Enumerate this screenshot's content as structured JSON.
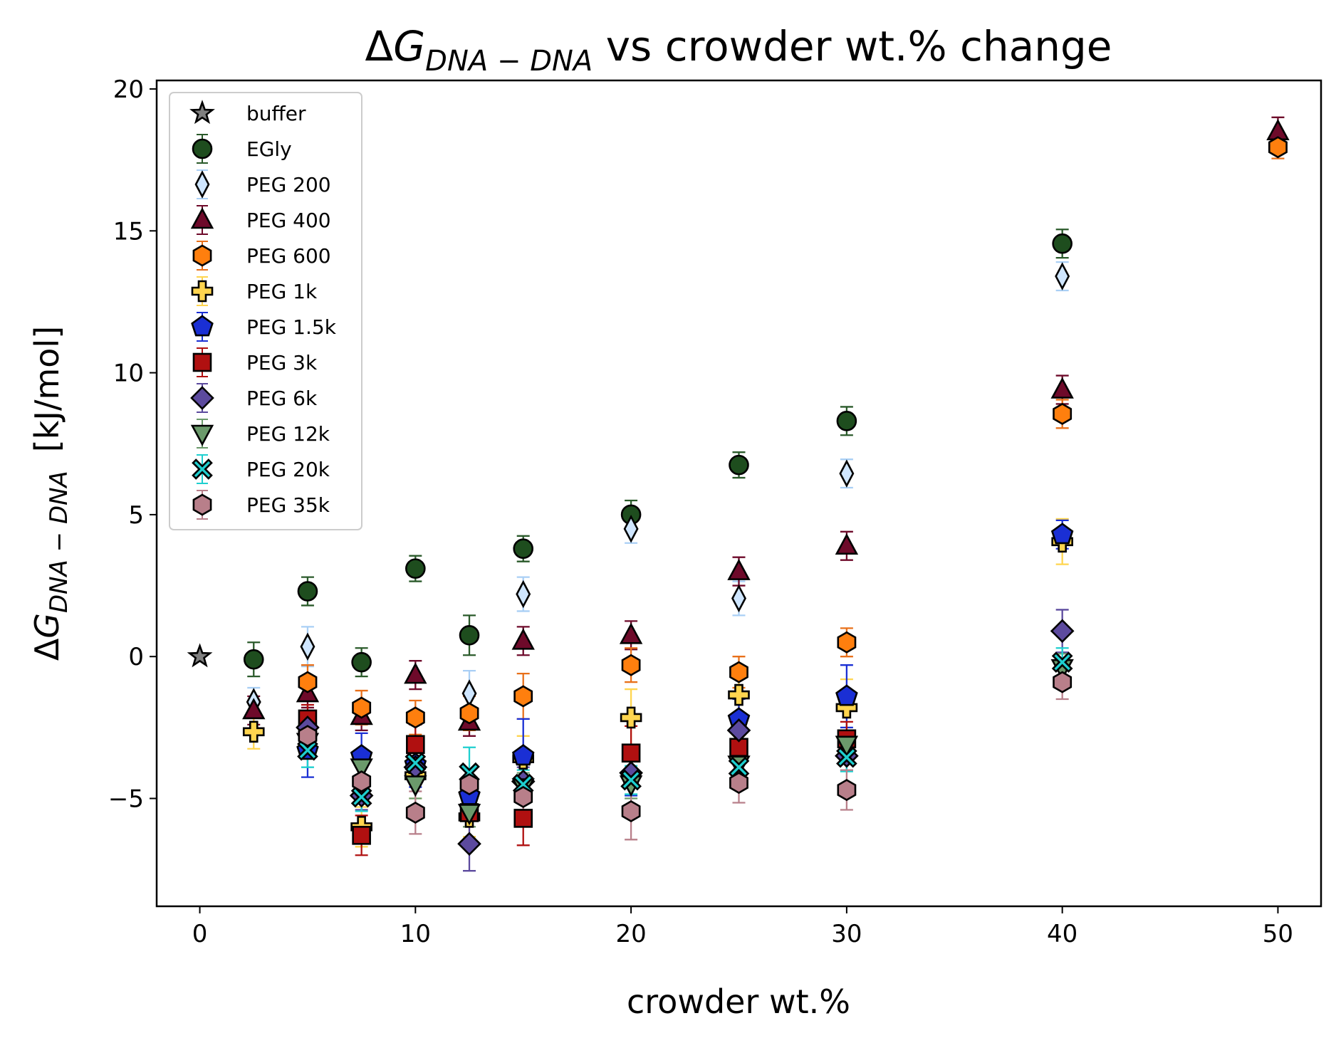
{
  "chart_data": {
    "type": "scatter",
    "title": "ΔG_{DNA-DNA} vs crowder wt.% change",
    "title_parts": {
      "delta": "Δ",
      "symbol": "G",
      "subscript": "DNA − DNA",
      "rest": " vs crowder wt.% change"
    },
    "xlabel": "crowder wt.%",
    "ylabel": "ΔG_{DNA-DNA}   [kJ/mol]",
    "ylabel_parts": {
      "delta": "Δ",
      "symbol": "G",
      "subscript": "DNA − DNA",
      "unit": "[kJ/mol]"
    },
    "xlim": [
      -2,
      52
    ],
    "ylim": [
      -8.8,
      20.3
    ],
    "xticks": [
      0,
      10,
      20,
      30,
      40,
      50
    ],
    "yticks": [
      -5,
      0,
      5,
      10,
      15,
      20
    ],
    "xtick_labels": [
      "0",
      "10",
      "20",
      "30",
      "40",
      "50"
    ],
    "ytick_labels": [
      "−5",
      "0",
      "5",
      "10",
      "15",
      "20"
    ],
    "grid": false,
    "legend_position": "upper-left",
    "series": [
      {
        "name": "buffer",
        "marker": "star",
        "color": "#808080",
        "ecolor": "#808080",
        "points": [
          [
            0,
            0.0,
            0
          ]
        ]
      },
      {
        "name": "EGly",
        "marker": "circle",
        "color": "#1e4d1e",
        "ecolor": "#2a5a2a",
        "points": [
          [
            2.5,
            -0.1,
            0.6
          ],
          [
            5,
            2.3,
            0.5
          ],
          [
            7.5,
            -0.2,
            0.5
          ],
          [
            10,
            3.1,
            0.45
          ],
          [
            12.5,
            0.75,
            0.7
          ],
          [
            15,
            3.8,
            0.45
          ],
          [
            20,
            5.0,
            0.5
          ],
          [
            25,
            6.75,
            0.45
          ],
          [
            30,
            8.3,
            0.5
          ],
          [
            40,
            14.55,
            0.5
          ]
        ]
      },
      {
        "name": "PEG 200",
        "marker": "thin_diamond",
        "color": "#cfe6ff",
        "ecolor": "#a9cff5",
        "points": [
          [
            2.5,
            -1.6,
            0.5
          ],
          [
            5,
            0.35,
            0.7
          ],
          [
            12.5,
            -1.3,
            0.8
          ],
          [
            15,
            2.2,
            0.6
          ],
          [
            20,
            4.5,
            0.5
          ],
          [
            25,
            2.05,
            0.6
          ],
          [
            30,
            6.45,
            0.5
          ],
          [
            40,
            13.4,
            0.5
          ]
        ]
      },
      {
        "name": "PEG 400",
        "marker": "triangle_up",
        "color": "#6e0a2a",
        "ecolor": "#6e0a2a",
        "points": [
          [
            2.5,
            -1.9,
            0.5
          ],
          [
            5,
            -1.3,
            0.5
          ],
          [
            7.5,
            -2.1,
            0.5
          ],
          [
            10,
            -0.65,
            0.5
          ],
          [
            12.5,
            -2.3,
            0.5
          ],
          [
            15,
            0.55,
            0.5
          ],
          [
            20,
            0.75,
            0.5
          ],
          [
            25,
            3.0,
            0.5
          ],
          [
            30,
            3.9,
            0.5
          ],
          [
            40,
            9.4,
            0.5
          ],
          [
            50,
            18.5,
            0.5
          ]
        ]
      },
      {
        "name": "PEG 600",
        "marker": "hexagon",
        "color": "#ff7f0e",
        "ecolor": "#e8701a",
        "points": [
          [
            5,
            -0.9,
            0.6
          ],
          [
            7.5,
            -1.8,
            0.6
          ],
          [
            10,
            -2.15,
            0.6
          ],
          [
            12.5,
            -2.0,
            0.6
          ],
          [
            15,
            -1.4,
            0.8
          ],
          [
            20,
            -0.3,
            0.6
          ],
          [
            25,
            -0.55,
            0.55
          ],
          [
            30,
            0.5,
            0.5
          ],
          [
            40,
            8.55,
            0.5
          ],
          [
            50,
            17.95,
            0.4
          ]
        ]
      },
      {
        "name": "PEG 1k",
        "marker": "plus_filled",
        "color": "#ffd54f",
        "ecolor": "#ffd54f",
        "points": [
          [
            2.5,
            -2.65,
            0.6
          ],
          [
            7.5,
            -6.0,
            0.7
          ],
          [
            10,
            -4.2,
            0.8
          ],
          [
            12.5,
            -5.65,
            0.7
          ],
          [
            15,
            -3.6,
            0.8
          ],
          [
            20,
            -2.15,
            1.0
          ],
          [
            25,
            -1.35,
            0.7
          ],
          [
            30,
            -1.8,
            1.0
          ],
          [
            40,
            4.05,
            0.8
          ]
        ]
      },
      {
        "name": "PEG 1.5k",
        "marker": "pentagon",
        "color": "#1a2fd4",
        "ecolor": "#1a2fd4",
        "points": [
          [
            5,
            -3.3,
            0.95
          ],
          [
            7.5,
            -3.5,
            0.8
          ],
          [
            10,
            -3.8,
            0.8
          ],
          [
            12.5,
            -4.9,
            0.7
          ],
          [
            15,
            -3.5,
            1.3
          ],
          [
            20,
            -4.2,
            0.7
          ],
          [
            25,
            -2.2,
            0.7
          ],
          [
            30,
            -1.4,
            1.1
          ],
          [
            40,
            4.3,
            0.5
          ]
        ]
      },
      {
        "name": "PEG 3k",
        "marker": "square",
        "color": "#b01010",
        "ecolor": "#b01010",
        "points": [
          [
            5,
            -2.2,
            0.5
          ],
          [
            7.5,
            -6.3,
            0.7
          ],
          [
            10,
            -3.1,
            0.7
          ],
          [
            12.5,
            -5.5,
            0.5
          ],
          [
            15,
            -5.7,
            0.95
          ],
          [
            20,
            -3.4,
            0.95
          ],
          [
            25,
            -3.2,
            1.0
          ],
          [
            30,
            -2.9,
            0.6
          ]
        ]
      },
      {
        "name": "PEG 6k",
        "marker": "diamond",
        "color": "#5c4a9e",
        "ecolor": "#5c4a9e",
        "points": [
          [
            5,
            -2.5,
            0.5
          ],
          [
            7.5,
            -4.9,
            0.5
          ],
          [
            10,
            -3.9,
            0.5
          ],
          [
            12.5,
            -6.6,
            0.95
          ],
          [
            15,
            -4.4,
            0.5
          ],
          [
            20,
            -4.1,
            0.5
          ],
          [
            25,
            -2.6,
            0.5
          ],
          [
            30,
            -3.5,
            0.5
          ],
          [
            40,
            0.9,
            0.75
          ]
        ]
      },
      {
        "name": "PEG 12k",
        "marker": "triangle_down",
        "color": "#6b9a6b",
        "ecolor": "#6b9a6b",
        "points": [
          [
            5,
            -3.0,
            0.5
          ],
          [
            7.5,
            -3.9,
            0.5
          ],
          [
            10,
            -4.5,
            0.5
          ],
          [
            12.5,
            -5.5,
            0.5
          ],
          [
            15,
            -4.6,
            0.5
          ],
          [
            20,
            -4.5,
            0.5
          ],
          [
            25,
            -3.8,
            0.5
          ],
          [
            30,
            -3.1,
            0.5
          ],
          [
            40,
            -0.4,
            0.5
          ]
        ]
      },
      {
        "name": "PEG 20k",
        "marker": "x_filled",
        "color": "#1ecfcf",
        "ecolor": "#1ecfcf",
        "points": [
          [
            5,
            -3.3,
            0.6
          ],
          [
            7.5,
            -4.95,
            0.5
          ],
          [
            10,
            -3.75,
            0.6
          ],
          [
            12.5,
            -4.1,
            0.9
          ],
          [
            15,
            -4.5,
            0.5
          ],
          [
            20,
            -4.35,
            0.5
          ],
          [
            25,
            -3.9,
            0.5
          ],
          [
            30,
            -3.55,
            0.5
          ],
          [
            40,
            -0.2,
            0.5
          ]
        ]
      },
      {
        "name": "PEG 35k",
        "marker": "hexagon",
        "color": "#b87f8a",
        "ecolor": "#b87f8a",
        "points": [
          [
            5,
            -2.8,
            0.5
          ],
          [
            7.5,
            -4.4,
            0.5
          ],
          [
            10,
            -5.5,
            0.75
          ],
          [
            12.5,
            -4.5,
            0.5
          ],
          [
            15,
            -4.95,
            0.5
          ],
          [
            20,
            -5.45,
            1.0
          ],
          [
            25,
            -4.45,
            0.7
          ],
          [
            30,
            -4.7,
            0.7
          ],
          [
            40,
            -0.9,
            0.6
          ]
        ]
      }
    ]
  }
}
